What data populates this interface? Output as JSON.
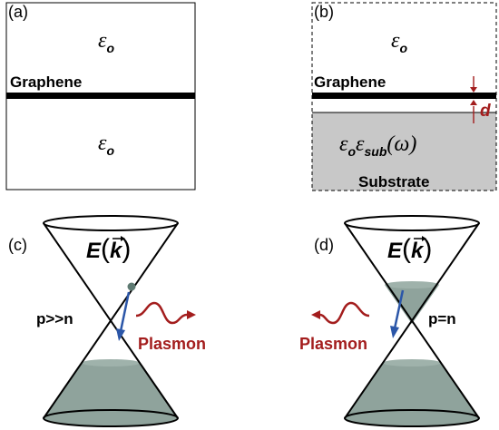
{
  "panels": {
    "a": {
      "label": "(a)",
      "top_medium": "ε",
      "top_medium_sub": "o",
      "graphene": "Graphene",
      "bottom_medium": "ε",
      "bottom_medium_sub": "o"
    },
    "b": {
      "label": "(b)",
      "top_medium": "ε",
      "top_medium_sub": "o",
      "graphene": "Graphene",
      "separation": "d",
      "substrate_eps_o": "ε",
      "substrate_eps_o_sub": "o",
      "substrate_eps": "ε",
      "substrate_eps_sub": "sub",
      "substrate_arg": "(ω)",
      "substrate": "Substrate"
    },
    "c": {
      "label": "(c)",
      "energy": "E",
      "k": "k",
      "doping": "p>>n",
      "plasmon": "Plasmon"
    },
    "d": {
      "label": "(d)",
      "energy": "E",
      "k": "k",
      "doping": "p=n",
      "plasmon": "Plasmon"
    }
  },
  "colors": {
    "plasmon": "#a31d1d",
    "arrow_blue": "#2b56a8",
    "fill_gray": "#8fa39c",
    "substrate": "#c8c8c8"
  }
}
